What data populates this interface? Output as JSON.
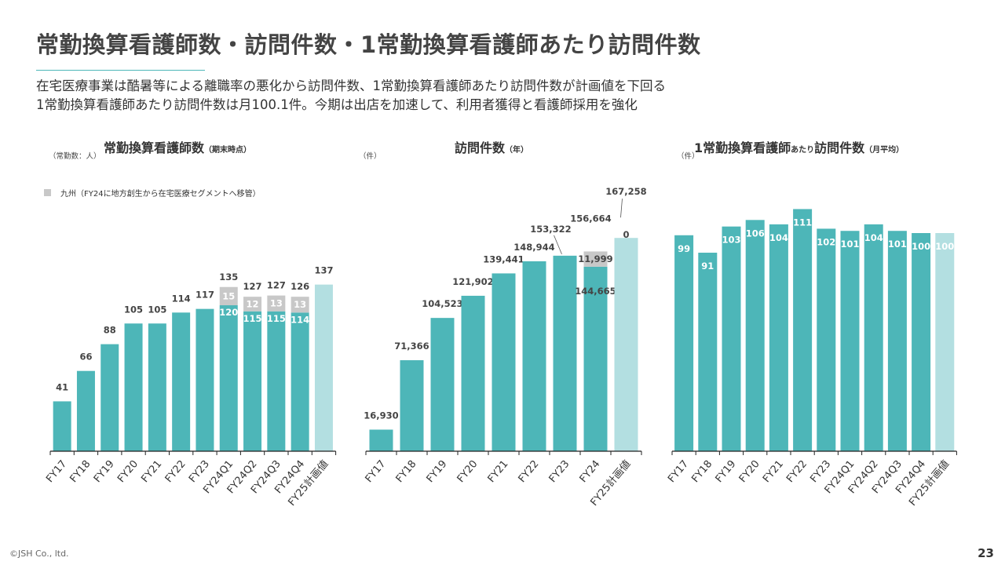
{
  "title": "常勤換算看護師数・訪問件数・1常勤換算看護師あたり訪問件数",
  "subtitle_line1": "在宅医療事業は酷暑等による離職率の悪化から訪問件数、1常勤換算看護師あたり訪問件数が計画値を下回る",
  "subtitle_line2": "1常勤換算看護師あたり訪問件数は月100.1件。今期は出店を加速して、利用者獲得と看護師採用を強化",
  "footer": "©JSH Co., ltd.",
  "page_number": "23",
  "colors": {
    "teal": "#4db6b8",
    "plan": "#b3dfe1",
    "gray": "#c8c8c8",
    "axis": "#222222"
  },
  "chart_data": [
    {
      "type": "bar",
      "title": "常勤換算看護師数",
      "title_suffix": "（期末時点）",
      "unit": "（常勤数：人）",
      "legend": "九州（FY24に地方創生から在宅医療セグメントへ移管）",
      "categories": [
        "FY17",
        "FY18",
        "FY19",
        "FY20",
        "FY21",
        "FY22",
        "FY23",
        "FY24Q1",
        "FY24Q2",
        "FY24Q3",
        "FY24Q4",
        "FY25計画値"
      ],
      "values": [
        41,
        66,
        88,
        105,
        105,
        114,
        117,
        120,
        115,
        115,
        114,
        137
      ],
      "kyushu": [
        null,
        null,
        null,
        null,
        null,
        null,
        null,
        15,
        12,
        13,
        13,
        null
      ],
      "totals": [
        41,
        66,
        88,
        105,
        105,
        114,
        117,
        135,
        127,
        127,
        126,
        137
      ],
      "plan_index": 11,
      "ylim": [
        0,
        150
      ]
    },
    {
      "type": "bar",
      "title": "訪問件数",
      "title_suffix": "（年）",
      "unit": "（件）",
      "categories": [
        "FY17",
        "FY18",
        "FY19",
        "FY20",
        "FY21",
        "FY22",
        "FY23",
        "FY24",
        "FY25計画値"
      ],
      "values": [
        16930,
        71366,
        104523,
        121902,
        139441,
        148944,
        153322,
        144665,
        167258
      ],
      "value_labels": [
        "16,930",
        "71,366",
        "104,523",
        "121,902",
        "139,441",
        "148,944",
        "153,322",
        "144,665",
        "167,258"
      ],
      "kyushu": [
        null,
        null,
        null,
        null,
        null,
        null,
        null,
        11999,
        0
      ],
      "kyushu_labels": [
        null,
        null,
        null,
        null,
        null,
        null,
        null,
        "11,999",
        "0"
      ],
      "extra_label": "156,664",
      "plan_index": 8,
      "ylim": [
        0,
        180000
      ]
    },
    {
      "type": "bar",
      "title": "1常勤換算看護師",
      "title_mid": "あたり",
      "title_end": "訪問件数",
      "title_suffix": "（月平均）",
      "unit": "（件）",
      "categories": [
        "FY17",
        "FY18",
        "FY19",
        "FY20",
        "FY21",
        "FY22",
        "FY23",
        "FY24Q1",
        "FY24Q2",
        "FY24Q3",
        "FY24Q4",
        "FY25計画値"
      ],
      "values": [
        99,
        91,
        103,
        106,
        104,
        111,
        102,
        101,
        104,
        101,
        100,
        100
      ],
      "plan_index": 11,
      "ylim": [
        0,
        120
      ]
    }
  ]
}
